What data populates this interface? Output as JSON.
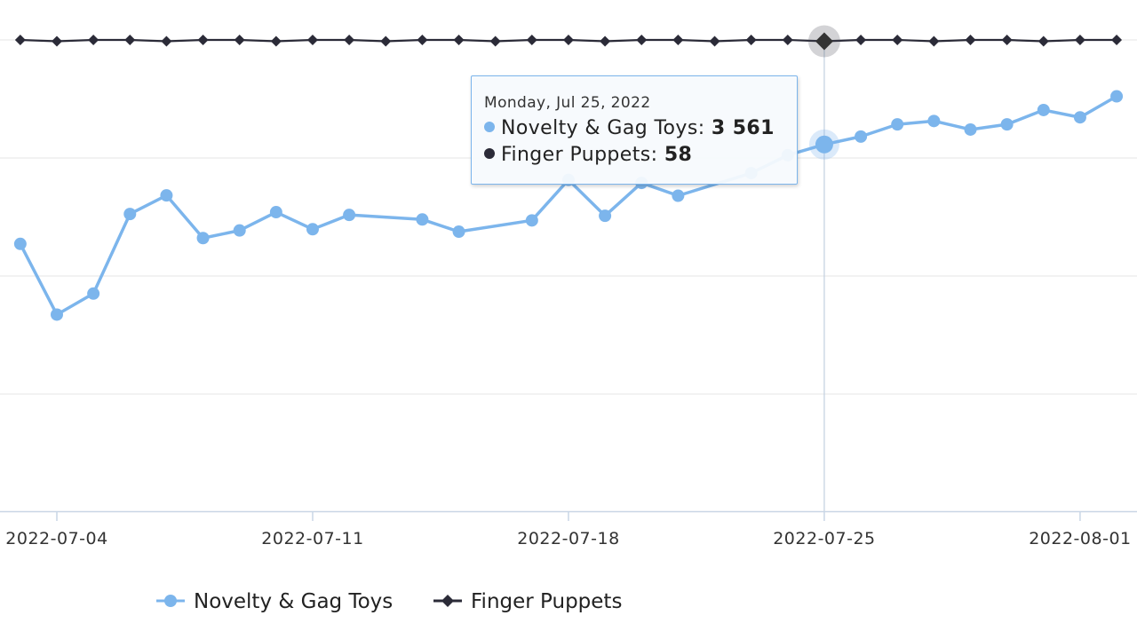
{
  "chart_data": {
    "type": "line",
    "x": [
      "2022-07-03",
      "2022-07-04",
      "2022-07-05",
      "2022-07-06",
      "2022-07-07",
      "2022-07-08",
      "2022-07-09",
      "2022-07-10",
      "2022-07-11",
      "2022-07-12",
      "2022-07-13",
      "2022-07-14",
      "2022-07-15",
      "2022-07-16",
      "2022-07-17",
      "2022-07-18",
      "2022-07-19",
      "2022-07-20",
      "2022-07-21",
      "2022-07-22",
      "2022-07-23",
      "2022-07-24",
      "2022-07-25",
      "2022-07-26",
      "2022-07-27",
      "2022-07-28",
      "2022-07-29",
      "2022-07-30",
      "2022-07-31",
      "2022-08-01",
      "2022-08-02"
    ],
    "series": [
      {
        "name": "Novelty & Gag Toys",
        "color": "#7cb5ec",
        "marker": "circle",
        "values": [
          3235,
          3003,
          3072,
          3333,
          3394,
          3254,
          3279,
          3339,
          3283,
          3330,
          null,
          3315,
          3275,
          null,
          3312,
          3445,
          3327,
          3435,
          3393,
          null,
          3467,
          3526,
          3561,
          3587,
          3627,
          3638,
          3610,
          3627,
          3674,
          3650,
          3719
        ]
      },
      {
        "name": "Finger Puppets",
        "color": "#2b2b38",
        "marker": "diamond",
        "values": [
          58,
          58,
          58,
          58,
          58,
          58,
          58,
          58,
          58,
          58,
          58,
          58,
          58,
          58,
          58,
          58,
          58,
          58,
          58,
          58,
          58,
          58,
          58,
          58,
          58,
          58,
          58,
          58,
          58,
          58,
          58
        ]
      }
    ],
    "x_ticks": [
      "2022-07-04",
      "2022-07-11",
      "2022-07-18",
      "2022-07-25",
      "2022-08-01"
    ],
    "tooltip": {
      "date": "Monday, Jul 25, 2022",
      "rows": [
        {
          "name": "Novelty & Gag Toys",
          "value": "3 561",
          "color": "#7cb5ec"
        },
        {
          "name": "Finger Puppets",
          "value": "58",
          "color": "#2b2b38"
        }
      ]
    },
    "legend": {
      "position": "bottom-center",
      "items": [
        {
          "name": "Novelty & Gag Toys",
          "color": "#7cb5ec",
          "marker": "circle"
        },
        {
          "name": "Finger Puppets",
          "color": "#2b2b38",
          "marker": "diamond"
        }
      ]
    },
    "grid": true,
    "highlighted_date": "2022-07-25"
  }
}
